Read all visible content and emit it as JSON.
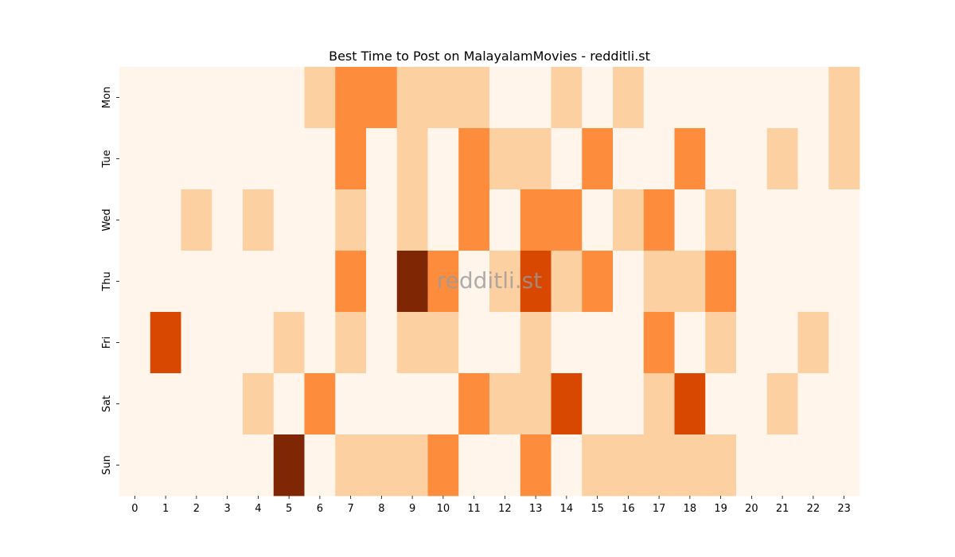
{
  "chart_data": {
    "type": "heatmap",
    "title": "Best Time to Post on MalayalamMovies - redditli.st",
    "watermark": "redditli.st",
    "x": [
      "0",
      "1",
      "2",
      "3",
      "4",
      "5",
      "6",
      "7",
      "8",
      "9",
      "10",
      "11",
      "12",
      "13",
      "14",
      "15",
      "16",
      "17",
      "18",
      "19",
      "20",
      "21",
      "22",
      "23"
    ],
    "y": [
      "Mon",
      "Tue",
      "Wed",
      "Thu",
      "Fri",
      "Sat",
      "Sun"
    ],
    "colormap": [
      "#fff5eb",
      "#fdd0a2",
      "#fd8d3c",
      "#d94801",
      "#7f2704"
    ],
    "values": [
      [
        0,
        0,
        0,
        0,
        0,
        0,
        1,
        2,
        2,
        1,
        1,
        1,
        0,
        0,
        1,
        0,
        1,
        0,
        0,
        0,
        0,
        0,
        0,
        1
      ],
      [
        0,
        0,
        0,
        0,
        0,
        0,
        0,
        2,
        0,
        1,
        0,
        2,
        1,
        1,
        0,
        2,
        0,
        0,
        2,
        0,
        0,
        1,
        0,
        1
      ],
      [
        0,
        0,
        1,
        0,
        1,
        0,
        0,
        1,
        0,
        1,
        0,
        2,
        0,
        2,
        2,
        0,
        1,
        2,
        0,
        1,
        0,
        0,
        0,
        0
      ],
      [
        0,
        0,
        0,
        0,
        0,
        0,
        0,
        2,
        0,
        4,
        2,
        0,
        1,
        3,
        1,
        2,
        0,
        1,
        1,
        2,
        0,
        0,
        0,
        0
      ],
      [
        0,
        3,
        0,
        0,
        0,
        1,
        0,
        1,
        0,
        1,
        1,
        0,
        0,
        1,
        0,
        0,
        0,
        2,
        0,
        1,
        0,
        0,
        1,
        0
      ],
      [
        0,
        0,
        0,
        0,
        1,
        0,
        2,
        0,
        0,
        0,
        0,
        2,
        1,
        1,
        3,
        0,
        0,
        1,
        3,
        0,
        0,
        1,
        0,
        0
      ],
      [
        0,
        0,
        0,
        0,
        0,
        4,
        0,
        1,
        1,
        1,
        2,
        0,
        0,
        2,
        0,
        1,
        1,
        1,
        1,
        1,
        0,
        0,
        0,
        0
      ]
    ]
  }
}
